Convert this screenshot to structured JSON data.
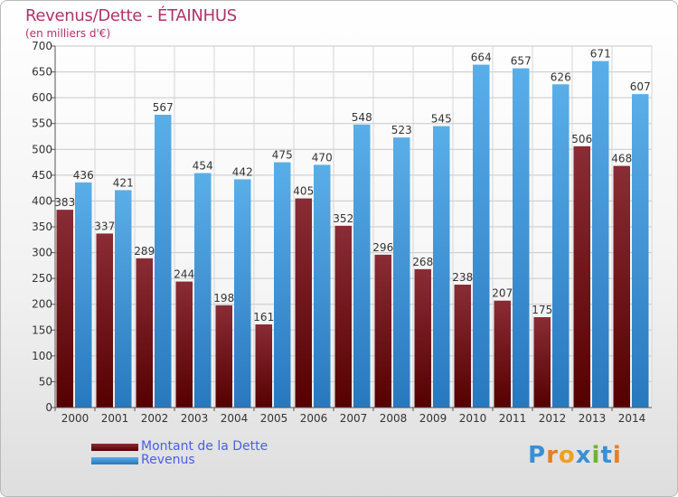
{
  "title": "Revenus/Dette - ÉTAINHUS",
  "subtitle": "(en milliers d'€)",
  "logo": {
    "text": "Proxiti",
    "letter_colors": [
      "#3a8fd4",
      "#e87f1e",
      "#f0a020",
      "#3a8fd4",
      "#6bb530",
      "#3a8fd4",
      "#e87f1e"
    ]
  },
  "colors": {
    "dette": "#7a1f2a",
    "revenus": "#3a96d8"
  },
  "chart_data": {
    "type": "bar",
    "categories": [
      "2000",
      "2001",
      "2002",
      "2003",
      "2004",
      "2005",
      "2006",
      "2007",
      "2008",
      "2009",
      "2010",
      "2011",
      "2012",
      "2013",
      "2014"
    ],
    "series": [
      {
        "name": "Montant de la Dette",
        "values": [
          383,
          337,
          289,
          244,
          198,
          161,
          405,
          352,
          296,
          268,
          238,
          207,
          175,
          506,
          468
        ]
      },
      {
        "name": "Revenus",
        "values": [
          436,
          421,
          567,
          454,
          442,
          475,
          470,
          548,
          523,
          545,
          664,
          657,
          626,
          671,
          607
        ]
      }
    ],
    "ylim": [
      0,
      700
    ],
    "ytick_step": 50,
    "grid": true,
    "legend_position": "bottom-left"
  }
}
